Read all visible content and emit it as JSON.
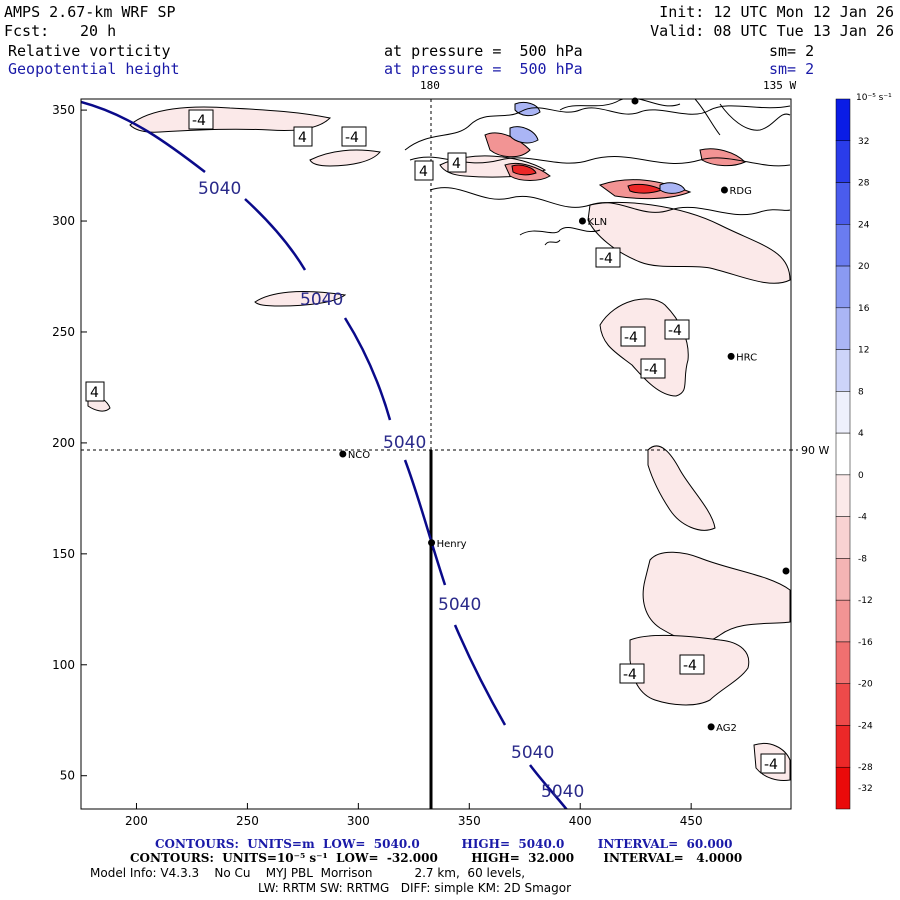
{
  "header": {
    "model": "AMPS 2.67-km WRF SP",
    "forecast_label": "Fcst:",
    "forecast_value": "20 h",
    "init": "Init: 12 UTC Mon 12 Jan 26",
    "valid": "Valid: 08 UTC Tue 13 Jan 26",
    "field1_name": "Relative vorticity",
    "field1_level": "at pressure =  500 hPa",
    "field1_sm": "sm= 2",
    "field2_name": "Geopotential height",
    "field2_level": "at pressure =  500 hPa",
    "field2_sm": "sm= 2"
  },
  "map": {
    "top_meridian_label": "180",
    "top_right_meridian_label": "135 W",
    "right_meridian_label": "90 W",
    "x_ticks": [
      "200",
      "250",
      "300",
      "350",
      "400",
      "450"
    ],
    "y_ticks": [
      "350",
      "300",
      "250",
      "200",
      "150",
      "100",
      "50"
    ],
    "stations": [
      {
        "name": "NCO",
        "x": 293,
        "y": 195
      },
      {
        "name": "Henry",
        "x": 333,
        "y": 155
      },
      {
        "name": "RDG",
        "x": 465,
        "y": 314
      },
      {
        "name": "KLN",
        "x": 401,
        "y": 300
      },
      {
        "name": "HRC",
        "x": 468,
        "y": 239
      },
      {
        "name": "AG2",
        "x": 459,
        "y": 72
      }
    ],
    "height_contour_label": "5040",
    "vort_contour_label_neg": "-4",
    "vort_contour_label_pos": "4"
  },
  "colorbar": {
    "units": "10⁻⁵ s⁻¹",
    "levels": [
      "32",
      "28",
      "24",
      "20",
      "16",
      "12",
      "8",
      "4",
      "0",
      "-4",
      "-8",
      "-12",
      "-16",
      "-20",
      "-24",
      "-28",
      "-32"
    ],
    "colors": [
      "#0a1ce6",
      "#2a3cea",
      "#4a5ced",
      "#6a7cf0",
      "#8a9af2",
      "#aab5f5",
      "#cdd4f9",
      "#eef0fc",
      "#ffffff",
      "#fbe9e9",
      "#f8d2d2",
      "#f4b4b4",
      "#f29494",
      "#f07070",
      "#ee4a4a",
      "#ec2828",
      "#ea0a0a"
    ]
  },
  "footer": {
    "line1_label": "CONTOURS:  UNITS=m  LOW=  5040.0          HIGH=  5040.0        INTERVAL=  60.000",
    "line2_label": "CONTOURS:  UNITS=10⁻⁵ s⁻¹  LOW=  -32.000        HIGH=  32.000       INTERVAL=   4.0000",
    "line3": "Model Info: V4.3.3    No Cu    MYJ PBL  Morrison           2.7 km,  60 levels,",
    "line4": "LW: RRTM SW: RRTMG   DIFF: simple KM: 2D Smagor"
  }
}
